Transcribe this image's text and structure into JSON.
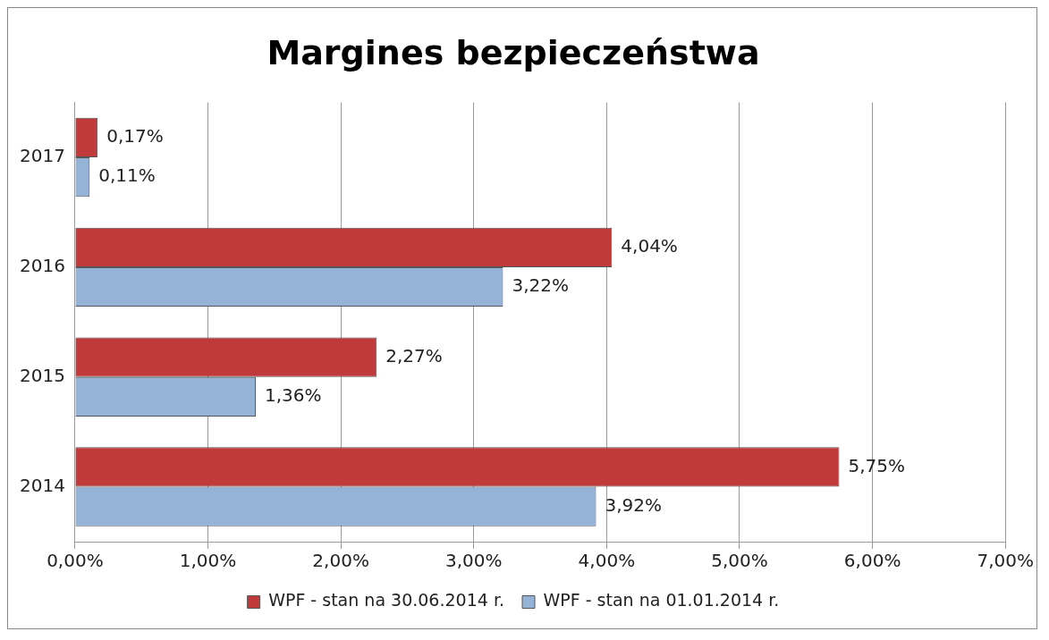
{
  "chart_data": {
    "type": "bar",
    "orientation": "horizontal",
    "title": "Margines bezpieczeństwa",
    "categories": [
      "2017",
      "2016",
      "2015",
      "2014"
    ],
    "series": [
      {
        "name": "WPF - stan na 30.06.2014 r.",
        "color": "#c0393b",
        "values": [
          0.17,
          4.04,
          2.27,
          5.75
        ],
        "value_labels": [
          "0,17%",
          "4,04%",
          "2,27%",
          "5,75%"
        ]
      },
      {
        "name": "WPF - stan na 01.01.2014 r.",
        "color": "#95b3d7",
        "values": [
          0.11,
          3.22,
          1.36,
          3.92
        ],
        "value_labels": [
          "0,11%",
          "3,22%",
          "1,36%",
          "3,92%"
        ]
      }
    ],
    "xlim": [
      0,
      7
    ],
    "xticks": [
      {
        "value": 0,
        "label": "0,00%"
      },
      {
        "value": 1,
        "label": "1,00%"
      },
      {
        "value": 2,
        "label": "2,00%"
      },
      {
        "value": 3,
        "label": "3,00%"
      },
      {
        "value": 4,
        "label": "4,00%"
      },
      {
        "value": 5,
        "label": "5,00%"
      },
      {
        "value": 6,
        "label": "6,00%"
      },
      {
        "value": 7,
        "label": "7,00%"
      }
    ],
    "grid": "x",
    "legend": "bottom"
  }
}
